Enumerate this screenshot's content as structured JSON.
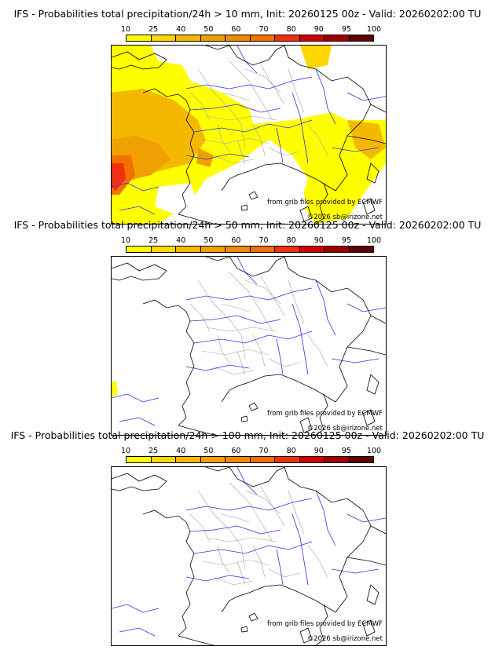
{
  "panels": [
    {
      "title": "IFS - Probabilities total precipitation/24h > 10 mm, Init: 20260125 00z - Valid: 20260202:00 TU",
      "credit_line1": "from grib files provided by ECMWF",
      "credit_line2": "©2026 sb@irizone.net",
      "probability_shading": "widespread"
    },
    {
      "title": "IFS - Probabilities total precipitation/24h > 50 mm, Init: 20260125 00z - Valid: 20260202:00 TU",
      "credit_line1": "from grib files provided by ECMWF",
      "credit_line2": "©2026 sb@irizone.net",
      "probability_shading": "minimal"
    },
    {
      "title": "IFS - Probabilities total precipitation/24h > 100 mm, Init: 20260125 00z - Valid: 20260202:00 TU",
      "credit_line1": "from grib files provided by ECMWF",
      "credit_line2": "©2026 sb@irizone.net",
      "probability_shading": "none"
    }
  ],
  "colorbar": {
    "ticks": [
      "10",
      "25",
      "40",
      "50",
      "60",
      "70",
      "80",
      "90",
      "95",
      "100"
    ],
    "colors": [
      "#ffff00",
      "#ffd700",
      "#f5b800",
      "#f0a000",
      "#f08a00",
      "#f07000",
      "#f03010",
      "#d40000",
      "#a00000",
      "#600000"
    ]
  },
  "map_colors": {
    "border": "#000000",
    "rivers": "#3030e0",
    "regions": "#a0a0a0",
    "ocean": "#ffffff"
  }
}
